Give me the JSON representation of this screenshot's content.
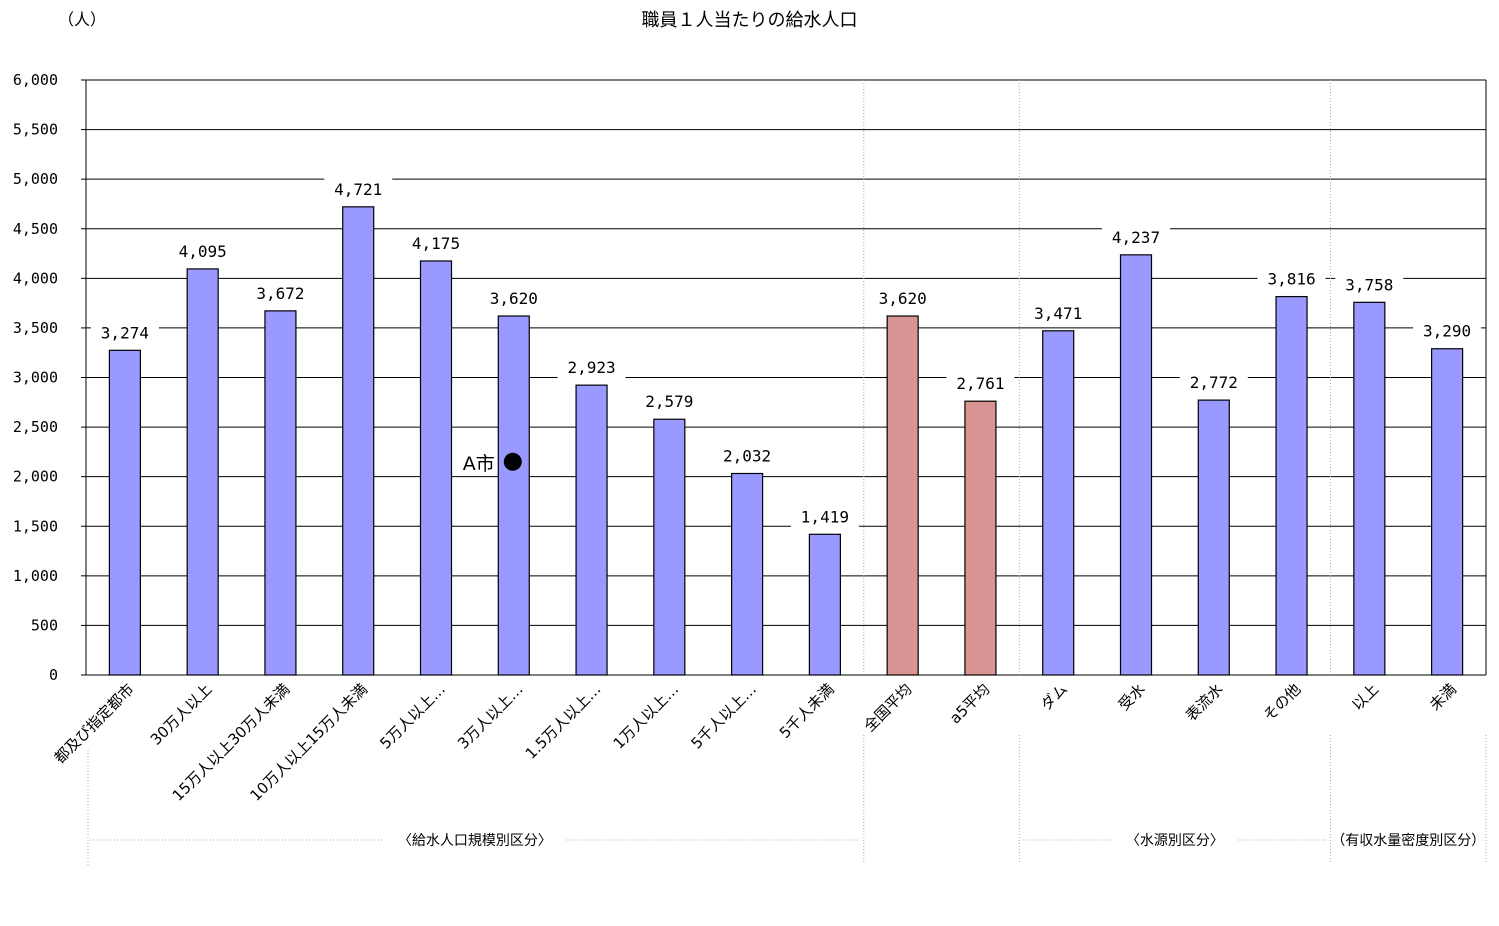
{
  "chart_data": {
    "type": "bar",
    "title": "職員１人当たりの給水人口",
    "yunit": "（人）",
    "ylim": [
      0,
      6000
    ],
    "yticks": [
      0,
      500,
      1000,
      1500,
      2000,
      2500,
      3000,
      3500,
      4000,
      4500,
      5000,
      5500,
      6000
    ],
    "ytick_labels": [
      "0",
      "500",
      "1,000",
      "1,500",
      "2,000",
      "2,500",
      "3,000",
      "3,500",
      "4,000",
      "4,500",
      "5,000",
      "5,500",
      "6,000"
    ],
    "grid": true,
    "categories": [
      "都及び指定都市",
      "30万人以上",
      "15万人以上30万人未満",
      "10万人以上15万人未満",
      "5万人以上…",
      "3万人以上…",
      "1.5万人以上…",
      "1万人以上…",
      "5千人以上…",
      "5千人未満",
      "全国平均",
      "a5平均",
      "ダム",
      "受水",
      "表流水",
      "その他",
      "以上",
      "未満"
    ],
    "values": [
      3274,
      4095,
      3672,
      4721,
      4175,
      3620,
      2923,
      2579,
      2032,
      1419,
      3620,
      2761,
      3471,
      4237,
      2772,
      3816,
      3758,
      3290
    ],
    "value_labels": [
      "3,274",
      "4,095",
      "3,672",
      "4,721",
      "4,175",
      "3,620",
      "2,923",
      "2,579",
      "2,032",
      "1,419",
      "3,620",
      "2,761",
      "3,471",
      "4,237",
      "2,772",
      "3,816",
      "3,758",
      "3,290"
    ],
    "bar_colors": [
      "#9999ff",
      "#9999ff",
      "#9999ff",
      "#9999ff",
      "#9999ff",
      "#9999ff",
      "#9999ff",
      "#9999ff",
      "#9999ff",
      "#9999ff",
      "#d99594",
      "#d99594",
      "#9999ff",
      "#9999ff",
      "#9999ff",
      "#9999ff",
      "#9999ff",
      "#9999ff"
    ],
    "groups": [
      {
        "label": "〈給水人口規模別区分〉",
        "from": 0,
        "to": 9
      },
      {
        "label": "〈水源別区分〉",
        "from": 12,
        "to": 15
      },
      {
        "label": "（有収水量密度別区分）",
        "from": 16,
        "to": 17
      }
    ],
    "annotation": {
      "label": "A市",
      "value": 2150,
      "category_index": 5
    }
  }
}
